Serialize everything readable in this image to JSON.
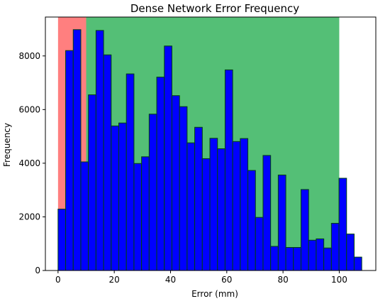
{
  "chart_data": {
    "type": "bar",
    "title": "Dense Network Error Frequency",
    "xlabel": "Error (mm)",
    "ylabel": "Frequency",
    "xlim": [
      -4.5,
      113
    ],
    "ylim": [
      0,
      9450
    ],
    "x_ticks": [
      0,
      20,
      40,
      60,
      80,
      100
    ],
    "y_ticks": [
      0,
      2000,
      4000,
      6000,
      8000
    ],
    "bin_width": 2.7,
    "bin_starts": [
      0,
      2.7,
      5.4,
      8.1,
      10.8,
      13.5,
      16.2,
      18.9,
      21.6,
      24.3,
      27.0,
      29.7,
      32.4,
      35.1,
      37.8,
      40.5,
      43.2,
      45.9,
      48.6,
      51.3,
      54.0,
      56.7,
      59.4,
      62.1,
      64.8,
      67.5,
      70.2,
      72.9,
      75.6,
      78.3,
      81.0,
      83.7,
      86.4,
      89.1,
      91.8,
      94.5,
      97.2,
      99.9,
      102.6,
      105.3
    ],
    "values": [
      2290,
      8200,
      8980,
      4050,
      6550,
      8950,
      8040,
      5390,
      5500,
      7330,
      3990,
      4240,
      5830,
      7210,
      8370,
      6520,
      6110,
      4760,
      5340,
      4170,
      4930,
      4540,
      7480,
      4810,
      4920,
      3730,
      1980,
      4290,
      900,
      3560,
      860,
      860,
      3020,
      1130,
      1180,
      840,
      1760,
      3440,
      1360,
      500
    ],
    "regions": [
      {
        "x_range": [
          0,
          10
        ],
        "color": "#ff0000",
        "alpha": 0.5
      },
      {
        "x_range": [
          10,
          100
        ],
        "color": "#00a032",
        "alpha": 0.67
      }
    ],
    "bar_color": "#0000ff",
    "bar_edge_color": "#004010",
    "legend": "none",
    "grid": false
  }
}
